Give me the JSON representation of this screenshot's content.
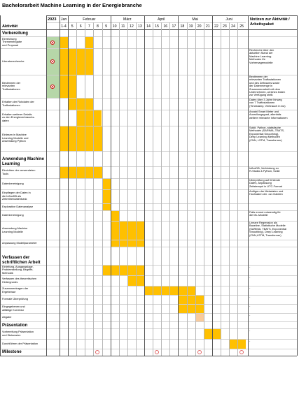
{
  "title": "Bachelorarbeit Machine Learning in der Energiebranche",
  "header": {
    "activity_label": "Aktivität",
    "notes_label": "Notizen zur Aktivität / Arbeitspaket",
    "year": "2023",
    "months": [
      "Jan",
      "Februar",
      "März",
      "April",
      "Mai",
      "Juni"
    ],
    "weeks": [
      "1-4",
      "5",
      "6",
      "7",
      "8",
      "9",
      "10",
      "11",
      "12",
      "13",
      "14",
      "15",
      "16",
      "17",
      "18",
      "19",
      "20",
      "21",
      "22",
      "23",
      "24",
      "25"
    ]
  },
  "colors": {
    "bar": "#FFC000",
    "green": "#B6D7A8",
    "grid": "#b7b7b7",
    "milestone": "#e06666"
  },
  "rows": [
    {
      "type": "section",
      "label": "Vorbereitung"
    },
    {
      "type": "task",
      "label": "Einreichung\nThemeneingabe\nund Proposal",
      "bar": [
        0,
        0
      ],
      "bar2": [
        3,
        3
      ],
      "icon": true,
      "note": ""
    },
    {
      "type": "task",
      "label": "Literaturrecherche",
      "bar": [
        0,
        3
      ],
      "icon": true,
      "note": "Recherche über den\naktuellen Stand der\nMachine Learning-\nMethoden für\nVorhersagemodelle"
    },
    {
      "type": "task",
      "label": "Bestimmen der\nrelevanten\nTraffostationen",
      "bar": [
        0,
        1
      ],
      "icon": true,
      "note": "Bestimmen der\nrelevanten Traffostationen\nund des Zeitraums sowie\nder Datenmenge in\nZusammenarbeit mit dem\nUnternehmen, welches Daten\nzur Verfügung stellt."
    },
    {
      "type": "task",
      "label": "Erhalten der Rohdaten der\nTraffostationen",
      "bar": [
        1,
        3
      ],
      "note": "Daten über 3 Jahre hinweg\nvon 7 Traffostationen\n(Timestamp, Verbrauch in kw)"
    },
    {
      "type": "task",
      "label": "Erhalten weiterer Details\nzu den Energieverbrauchs-\ndaten",
      "bar": [
        2,
        4
      ],
      "note": "Anzahl Smart Meter und\nAusrollungsgrad, allenfalls\nweitere relevante Informationen"
    },
    {
      "type": "task",
      "label": "Einlesen in Machine\nLearning Modelle und\nAnwendung Python",
      "bar": [
        0,
        4
      ],
      "note": "Scikit, Python, statistische\nMethoden (SARIMA, TBATS,\nExponential Smoothing),\nDeep Learning Methoden\n(CNN, LSTM, Transformer)"
    },
    {
      "type": "section",
      "label": "Anwendung Machine\nLearning"
    },
    {
      "type": "task",
      "label": "Einrichten der verwendeten\nTools",
      "bar": [
        0,
        4
      ],
      "note": "InfluxDB, Verbindung zu\nR-Studio & Python, Scikit"
    },
    {
      "type": "task",
      "label": "Datenbereinigung",
      "bar": [
        5,
        5
      ],
      "note": "Überprüfung auf fehlende\nDaten, Anpassung\nZeitstempel in UTC-Format"
    },
    {
      "type": "task",
      "label": "Einpflegen der Daten in\ndie InfluxDB als\nZeitreihendatenbank",
      "bar": [
        5,
        5
      ],
      "note": "Anfügen der Metadaten und\nHochladen der .csv Dateien"
    },
    {
      "type": "task",
      "label": "Explorative Datenanalyse",
      "bar": [
        5,
        5
      ],
      "note": ""
    },
    {
      "type": "task",
      "label": "Datenbereinigung",
      "bar": [
        6,
        6
      ],
      "note": "Falls erneut notwendig für\ndie ML-Modelle"
    },
    {
      "type": "task",
      "label": "Anwendung Machine\nLearning Modelle",
      "bar": [
        6,
        9
      ],
      "note": "Lineare Regression als\nBaseline, Statistische Modelle\n(SARIMA, TBATS, Exponential\nSmoothing), Deep Learning\n(CNN,LSTM, Transformer)"
    },
    {
      "type": "task",
      "label": "Anpassung Modellparameter",
      "bar": [
        6,
        9
      ],
      "note": ""
    },
    {
      "type": "section",
      "label": "Verfassen der\nschriftlichen Arbeit"
    },
    {
      "type": "task",
      "label": "Einleitung, Ausgangslage,\nProblemstellung, Begriffe,\nMethodik",
      "bar": [
        5,
        9
      ],
      "note": "-"
    },
    {
      "type": "task",
      "label": "Verfassen des theoretischen\nHintergrunds",
      "bar": [
        8,
        9
      ],
      "note": "-"
    },
    {
      "type": "task",
      "label": "Zusammentragen der\nErgebnisse",
      "bar": [
        10,
        15
      ],
      "note": "-"
    },
    {
      "type": "task",
      "label": "Formale Überprüfung",
      "bar": [
        14,
        16
      ],
      "note": "-"
    },
    {
      "type": "task",
      "label": "Eingegebenen und\nallfällige Korrektur",
      "bar": [
        14,
        16
      ],
      "note": "-"
    },
    {
      "type": "task",
      "label": "Abgabe",
      "bar": [
        16,
        16
      ],
      "light": true,
      "note": "-"
    },
    {
      "type": "section",
      "label": "Präsentation"
    },
    {
      "type": "task",
      "label": "Vorbereitung Präsentation\nund Diskussion",
      "bar": [
        17,
        18
      ],
      "note": "-"
    },
    {
      "type": "task",
      "label": "Durchführen der Präsentation",
      "bar": [
        20,
        21
      ],
      "note": "-"
    },
    {
      "type": "milestone",
      "label": "Milestone",
      "marks": [
        4,
        11,
        16,
        21
      ]
    }
  ]
}
